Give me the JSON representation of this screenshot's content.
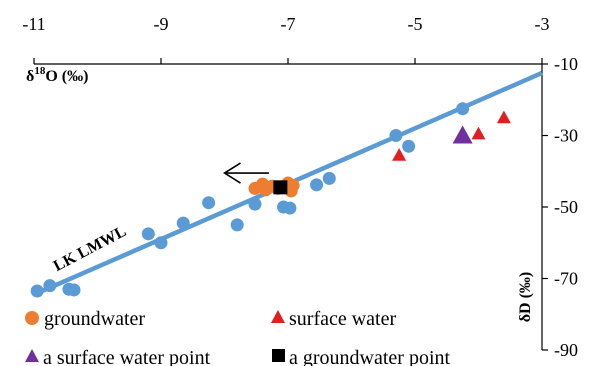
{
  "chart_data": {
    "type": "scatter",
    "xlabel_base": "δ",
    "xlabel_sup": "18",
    "xlabel_rest": "O (‰)",
    "ylabel": "δD (‰)",
    "xlim": [
      -11,
      -3
    ],
    "ylim": [
      -90,
      -10
    ],
    "x_ticks": [
      -11,
      -9,
      -7,
      -5,
      -3
    ],
    "y_ticks": [
      -10,
      -30,
      -50,
      -70,
      -90
    ],
    "x_tick_labels": [
      "-11",
      "-9",
      "-7",
      "-5",
      "-3"
    ],
    "y_tick_labels": [
      "-10",
      "-30",
      "-50",
      "-70",
      "-90"
    ],
    "x_axis_position": "top",
    "y_axis_position": "right",
    "grid": false,
    "legend_position": "bottom-left",
    "colors": {
      "lmwl": "#5B9BD5",
      "lmwl_points": "#5B9BD5",
      "groundwater": "#ED7D31",
      "surface_water": "#E02020",
      "surface_water_point": "#7030A0",
      "groundwater_point": "#000000",
      "arrow": "#000000"
    },
    "line": {
      "name": "LK LMWL",
      "start": [
        -11,
        -74.5
      ],
      "end": [
        -3,
        -12.5
      ]
    },
    "series": [
      {
        "key": "lmwl_points",
        "marker": "circle",
        "points": [
          [
            -10.95,
            -73.5
          ],
          [
            -10.75,
            -72
          ],
          [
            -10.45,
            -73
          ],
          [
            -10.37,
            -73.2
          ],
          [
            -9.2,
            -57.5
          ],
          [
            -9.0,
            -60
          ],
          [
            -8.65,
            -54.5
          ],
          [
            -8.25,
            -48.8
          ],
          [
            -7.8,
            -55
          ],
          [
            -7.52,
            -49.2
          ],
          [
            -7.07,
            -50
          ],
          [
            -6.97,
            -50.3
          ],
          [
            -6.55,
            -43.8
          ],
          [
            -6.35,
            -42
          ],
          [
            -5.3,
            -30
          ],
          [
            -5.1,
            -33
          ],
          [
            -4.25,
            -22.5
          ]
        ]
      },
      {
        "key": "groundwater",
        "name": "groundwater",
        "marker": "circle",
        "points": [
          [
            -7.52,
            -44.8
          ],
          [
            -7.4,
            -43.6
          ],
          [
            -7.35,
            -45.2
          ],
          [
            -7.25,
            -44.2
          ],
          [
            -7.15,
            -44.8
          ],
          [
            -7.0,
            -43.3
          ],
          [
            -6.92,
            -44
          ],
          [
            -6.95,
            -45.5
          ]
        ]
      },
      {
        "key": "surface_water",
        "name": "surface water",
        "marker": "triangle",
        "points": [
          [
            -5.25,
            -35.5
          ],
          [
            -4.0,
            -29.5
          ],
          [
            -3.6,
            -25
          ]
        ]
      },
      {
        "key": "surface_water_point",
        "name": "a surface water point",
        "marker": "triangle-large",
        "points": [
          [
            -4.25,
            -30
          ]
        ]
      },
      {
        "key": "groundwater_point",
        "name": "a groundwater point",
        "marker": "square",
        "points": [
          [
            -7.12,
            -44.5
          ]
        ]
      }
    ],
    "arrow": {
      "from": [
        -7.3,
        -40.5
      ],
      "to": [
        -8.0,
        -40.5
      ]
    }
  }
}
